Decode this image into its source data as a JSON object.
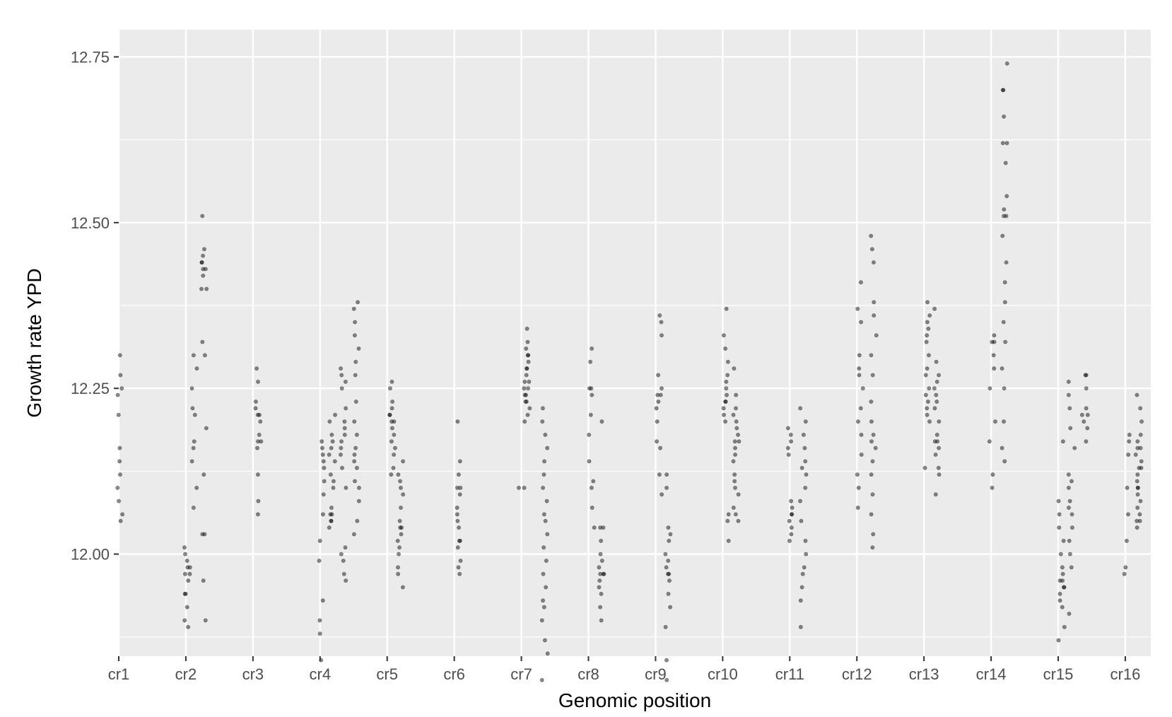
{
  "chart_data": {
    "type": "scatter",
    "title": "",
    "xlabel": "Genomic position",
    "ylabel": "Growth rate YPD",
    "x_categories": [
      "cr1",
      "cr2",
      "cr3",
      "cr4",
      "cr5",
      "cr6",
      "cr7",
      "cr8",
      "cr9",
      "cr10",
      "cr11",
      "cr12",
      "cr13",
      "cr14",
      "cr15",
      "cr16"
    ],
    "xlim": [
      1,
      16.38
    ],
    "ylim": [
      11.846,
      12.791
    ],
    "y_ticks": [
      12.0,
      12.25,
      12.5,
      12.75
    ],
    "y_tick_labels": [
      "12.00",
      "12.25",
      "12.50",
      "12.75"
    ],
    "grid": true,
    "legend": "none",
    "colors": {
      "panel_background": "#ebebeb",
      "grid_line": "#ffffff",
      "point": "#000000"
    },
    "series": [
      {
        "clusters": [
          {
            "x": 1.02,
            "y": [
              12.3,
              12.27,
              12.24,
              12.21,
              12.16,
              12.12,
              12.1,
              12.06,
              12.05,
              12.14,
              12.08,
              12.25
            ]
          },
          {
            "x": 2.02,
            "y": [
              11.89,
              11.9,
              11.92,
              11.94,
              11.96,
              11.97,
              11.98,
              11.99,
              12.0,
              12.01,
              11.97,
              11.98,
              11.94
            ]
          },
          {
            "x": 2.12,
            "y": [
              12.07,
              12.1,
              12.14,
              12.16,
              12.17,
              12.21,
              12.22,
              12.25,
              12.28,
              12.3
            ]
          },
          {
            "x": 2.27,
            "y": [
              12.51,
              12.46,
              12.45,
              12.44,
              12.43,
              12.43,
              12.42,
              12.4,
              12.4,
              12.32,
              12.19,
              12.12,
              12.03,
              12.03,
              11.96,
              11.9,
              12.3,
              12.44
            ]
          },
          {
            "x": 3.08,
            "y": [
              12.28,
              12.26,
              12.23,
              12.22,
              12.21,
              12.21,
              12.18,
              12.17,
              12.16,
              12.12,
              12.08,
              12.06,
              12.2,
              12.17
            ]
          },
          {
            "x": 4.02,
            "y": [
              11.84,
              11.88,
              11.9,
              11.93,
              11.99,
              12.02,
              12.06,
              12.09,
              12.11,
              12.13,
              12.14,
              12.15,
              12.16,
              12.17
            ]
          },
          {
            "x": 4.18,
            "y": [
              12.04,
              12.05,
              12.05,
              12.06,
              12.07,
              12.1,
              12.11,
              12.12,
              12.14,
              12.15,
              12.16,
              12.17,
              12.18,
              12.2,
              12.21,
              12.06
            ]
          },
          {
            "x": 4.35,
            "y": [
              11.96,
              11.97,
              11.99,
              12.0,
              12.01,
              12.1,
              12.13,
              12.15,
              12.17,
              12.18,
              12.19,
              12.2,
              12.22,
              12.25,
              12.26,
              12.27,
              12.28,
              12.16
            ]
          },
          {
            "x": 4.55,
            "y": [
              12.03,
              12.05,
              12.08,
              12.1,
              12.11,
              12.13,
              12.14,
              12.16,
              12.18,
              12.2,
              12.23,
              12.27,
              12.29,
              12.31,
              12.33,
              12.35,
              12.37,
              12.38,
              12.15
            ]
          },
          {
            "x": 5.08,
            "y": [
              12.26,
              12.25,
              12.23,
              12.22,
              12.21,
              12.2,
              12.19,
              12.18,
              12.17,
              12.16,
              12.15,
              12.13,
              12.12,
              12.2,
              12.21
            ]
          },
          {
            "x": 5.2,
            "y": [
              11.95,
              11.97,
              11.98,
              12.0,
              12.01,
              12.02,
              12.03,
              12.04,
              12.05,
              12.07,
              12.09,
              12.1,
              12.11,
              12.12,
              12.14,
              12.04
            ]
          },
          {
            "x": 6.05,
            "y": [
              12.2,
              12.14,
              12.12,
              12.1,
              12.1,
              12.09,
              12.07,
              12.05,
              12.04,
              12.02,
              12.02,
              12.01,
              11.99,
              11.98,
              11.97,
              12.06
            ]
          },
          {
            "x": 7.0,
            "y": [
              12.1,
              12.1
            ]
          },
          {
            "x": 7.08,
            "y": [
              12.34,
              12.32,
              12.31,
              12.3,
              12.29,
              12.28,
              12.27,
              12.26,
              12.25,
              12.25,
              12.24,
              12.23,
              12.22,
              12.21,
              12.2,
              12.3,
              12.26,
              12.24,
              12.28,
              12.23
            ]
          },
          {
            "x": 7.35,
            "y": [
              11.81,
              11.85,
              11.87,
              11.9,
              11.92,
              11.93,
              11.95,
              11.97,
              11.99,
              12.01,
              12.03,
              12.05,
              12.06,
              12.08,
              12.1,
              12.12,
              12.14,
              12.16,
              12.18,
              12.2,
              12.22
            ]
          },
          {
            "x": 8.05,
            "y": [
              12.31,
              12.29,
              12.25,
              12.24,
              12.21,
              12.18,
              12.14,
              12.11,
              12.1,
              12.07,
              12.04,
              12.25
            ]
          },
          {
            "x": 8.2,
            "y": [
              11.9,
              11.92,
              11.94,
              11.95,
              11.96,
              11.97,
              11.97,
              11.98,
              11.99,
              12.0,
              12.02,
              12.04,
              12.04,
              12.2,
              11.97
            ]
          },
          {
            "x": 9.05,
            "y": [
              12.36,
              12.35,
              12.33,
              12.27,
              12.25,
              12.24,
              12.23,
              12.22,
              12.2,
              12.17,
              12.16,
              12.12,
              12.09,
              12.24
            ]
          },
          {
            "x": 9.18,
            "y": [
              11.81,
              11.84,
              11.89,
              11.92,
              11.94,
              11.96,
              11.97,
              11.98,
              11.99,
              12.0,
              12.02,
              12.03,
              12.04,
              12.1,
              12.12,
              11.97
            ]
          },
          {
            "x": 10.05,
            "y": [
              12.37,
              12.33,
              12.31,
              12.29,
              12.27,
              12.26,
              12.25,
              12.24,
              12.23,
              12.22,
              12.21,
              12.2,
              12.06,
              12.05,
              12.02,
              12.23
            ]
          },
          {
            "x": 10.2,
            "y": [
              12.05,
              12.06,
              12.07,
              12.09,
              12.1,
              12.11,
              12.12,
              12.14,
              12.15,
              12.16,
              12.17,
              12.18,
              12.19,
              12.2,
              12.21,
              12.22,
              12.28,
              12.24,
              12.17
            ]
          },
          {
            "x": 11.02,
            "y": [
              12.02,
              12.03,
              12.04,
              12.05,
              12.06,
              12.07,
              12.08,
              12.15,
              12.16,
              12.17,
              12.18,
              12.19,
              12.06
            ]
          },
          {
            "x": 11.2,
            "y": [
              11.89,
              11.93,
              11.95,
              11.97,
              11.98,
              12.0,
              12.02,
              12.05,
              12.08,
              12.1,
              12.12,
              12.14,
              12.16,
              12.18,
              12.2,
              12.22,
              12.13
            ]
          },
          {
            "x": 12.05,
            "y": [
              12.41,
              12.37,
              12.35,
              12.3,
              12.28,
              12.25,
              12.22,
              12.2,
              12.18,
              12.15,
              12.12,
              12.1,
              12.07,
              12.27
            ]
          },
          {
            "x": 12.25,
            "y": [
              12.48,
              12.46,
              12.44,
              12.38,
              12.36,
              12.33,
              12.3,
              12.27,
              12.23,
              12.2,
              12.17,
              12.14,
              12.12,
              12.09,
              12.06,
              12.03,
              12.01,
              12.16,
              12.18
            ]
          },
          {
            "x": 13.05,
            "y": [
              12.38,
              12.36,
              12.34,
              12.32,
              12.3,
              12.28,
              12.27,
              12.25,
              12.24,
              12.23,
              12.22,
              12.21,
              12.2,
              12.13,
              12.35,
              12.33
            ]
          },
          {
            "x": 13.2,
            "y": [
              12.09,
              12.12,
              12.13,
              12.15,
              12.16,
              12.17,
              12.18,
              12.2,
              12.22,
              12.23,
              12.24,
              12.25,
              12.26,
              12.27,
              12.29,
              12.37,
              12.17
            ]
          },
          {
            "x": 14.02,
            "y": [
              12.1,
              12.12,
              12.17,
              12.33,
              12.32,
              12.3,
              12.28,
              12.25,
              12.2,
              12.32
            ]
          },
          {
            "x": 14.2,
            "y": [
              12.74,
              12.7,
              12.7,
              12.66,
              12.62,
              12.59,
              12.54,
              12.52,
              12.51,
              12.51,
              12.48,
              12.44,
              12.41,
              12.38,
              12.35,
              12.32,
              12.28,
              12.25,
              12.2,
              12.16,
              12.14,
              12.62
            ]
          },
          {
            "x": 15.05,
            "y": [
              11.87,
              11.89,
              11.92,
              11.93,
              11.94,
              11.95,
              11.96,
              11.97,
              11.98,
              12.0,
              12.02,
              12.04,
              12.06,
              12.08,
              12.17,
              11.95,
              11.96
            ]
          },
          {
            "x": 15.2,
            "y": [
              12.26,
              12.24,
              12.22,
              12.19,
              12.16,
              12.12,
              12.1,
              12.08,
              12.06,
              12.04,
              12.02,
              12.0,
              11.98,
              11.91,
              12.11,
              12.07
            ]
          },
          {
            "x": 15.4,
            "y": [
              12.27,
              12.25,
              12.22,
              12.21,
              12.2,
              12.19,
              12.17,
              12.27,
              12.21
            ]
          },
          {
            "x": 16.02,
            "y": [
              11.97,
              11.98,
              12.02,
              12.06,
              12.1,
              12.15,
              12.18,
              12.17
            ]
          },
          {
            "x": 16.2,
            "y": [
              12.04,
              12.05,
              12.06,
              12.07,
              12.08,
              12.09,
              12.1,
              12.11,
              12.12,
              12.13,
              12.14,
              12.15,
              12.16,
              12.17,
              12.18,
              12.2,
              12.22,
              12.24,
              12.1,
              12.05,
              12.13,
              12.16
            ]
          }
        ]
      }
    ]
  }
}
